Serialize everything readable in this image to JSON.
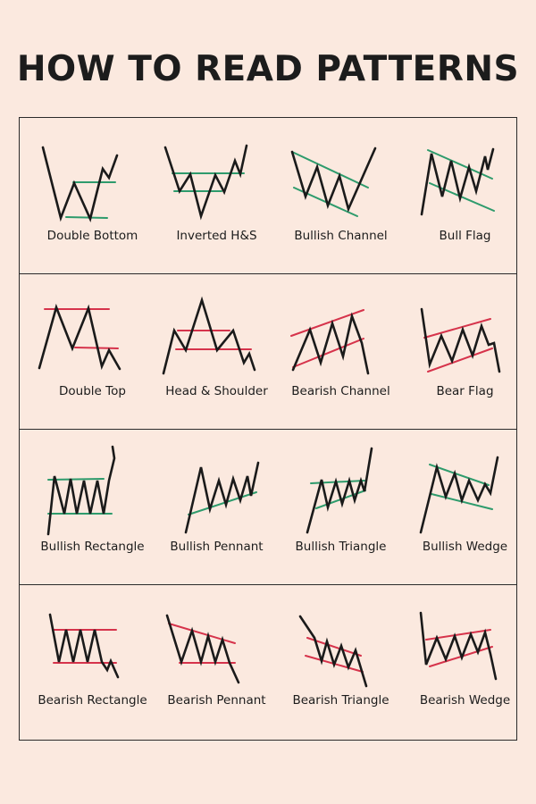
{
  "title": "HOW TO READ PATTERNS",
  "colors": {
    "background": "#fbe9df",
    "price_line": "#1a1a1a",
    "bullish_line": "#2e9b6c",
    "bearish_line": "#d6334b"
  },
  "rows": [
    {
      "patterns": [
        {
          "label": "Double Bottom",
          "key": "double-bottom",
          "trend": "bullish"
        },
        {
          "label": "Inverted H&S",
          "key": "inverted-hs",
          "trend": "bullish"
        },
        {
          "label": "Bullish Channel",
          "key": "bullish-channel",
          "trend": "bullish"
        },
        {
          "label": "Bull Flag",
          "key": "bull-flag",
          "trend": "bullish"
        }
      ]
    },
    {
      "patterns": [
        {
          "label": "Double Top",
          "key": "double-top",
          "trend": "bearish"
        },
        {
          "label": "Head & Shoulder",
          "key": "head-and-shoulder",
          "trend": "bearish"
        },
        {
          "label": "Bearish Channel",
          "key": "bearish-channel",
          "trend": "bearish"
        },
        {
          "label": "Bear Flag",
          "key": "bear-flag",
          "trend": "bearish"
        }
      ]
    },
    {
      "patterns": [
        {
          "label": "Bullish Rectangle",
          "key": "bullish-rectangle",
          "trend": "bullish"
        },
        {
          "label": "Bullish Pennant",
          "key": "bullish-pennant",
          "trend": "bullish"
        },
        {
          "label": "Bullish  Triangle",
          "key": "bullish-triangle",
          "trend": "bullish"
        },
        {
          "label": "Bullish Wedge",
          "key": "bullish-wedge",
          "trend": "bullish"
        }
      ]
    },
    {
      "patterns": [
        {
          "label": "Bearish Rectangle",
          "key": "bearish-rectangle",
          "trend": "bearish"
        },
        {
          "label": "Bearish Pennant",
          "key": "bearish-pennant",
          "trend": "bearish"
        },
        {
          "label": "Bearish Triangle",
          "key": "bearish-triangle",
          "trend": "bearish"
        },
        {
          "label": "Bearish Wedge",
          "key": "bearish-wedge",
          "trend": "bearish"
        }
      ]
    }
  ]
}
